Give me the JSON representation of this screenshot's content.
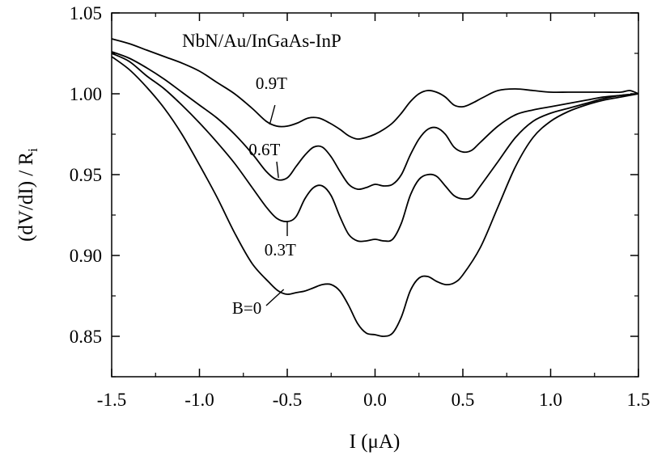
{
  "chart_data": {
    "type": "line",
    "title": "NbN/Au/InGaAs-InP",
    "xlabel": "I (μA)",
    "ylabel": "(dV/dI) / R",
    "ylabel_subscript": "i",
    "xlim": [
      -1.5,
      1.5
    ],
    "ylim": [
      0.825,
      1.05
    ],
    "xticks": [
      {
        "v": -1.5,
        "label": "-1.5"
      },
      {
        "v": -1.0,
        "label": "-1.0"
      },
      {
        "v": -0.5,
        "label": "-0.5"
      },
      {
        "v": 0.0,
        "label": "0.0"
      },
      {
        "v": 0.5,
        "label": "0.5"
      },
      {
        "v": 1.0,
        "label": "1.0"
      },
      {
        "v": 1.5,
        "label": "1.5"
      }
    ],
    "yticks": [
      {
        "v": 0.85,
        "label": "0.85"
      },
      {
        "v": 0.9,
        "label": "0.90"
      },
      {
        "v": 0.95,
        "label": "0.95"
      },
      {
        "v": 1.0,
        "label": "1.00"
      },
      {
        "v": 1.05,
        "label": "1.05"
      }
    ],
    "grid": false,
    "series": [
      {
        "name": "0.9T",
        "label_at": [
          -0.59,
          1.003
        ],
        "leader": [
          [
            -0.57,
            0.993
          ],
          [
            -0.6,
            0.981
          ]
        ],
        "points": [
          [
            -1.5,
            1.034
          ],
          [
            -1.4,
            1.031
          ],
          [
            -1.3,
            1.027
          ],
          [
            -1.2,
            1.023
          ],
          [
            -1.1,
            1.019
          ],
          [
            -1.0,
            1.014
          ],
          [
            -0.9,
            1.007
          ],
          [
            -0.8,
            1.0
          ],
          [
            -0.7,
            0.991
          ],
          [
            -0.62,
            0.983
          ],
          [
            -0.56,
            0.98
          ],
          [
            -0.5,
            0.98
          ],
          [
            -0.44,
            0.982
          ],
          [
            -0.38,
            0.985
          ],
          [
            -0.32,
            0.985
          ],
          [
            -0.26,
            0.982
          ],
          [
            -0.2,
            0.978
          ],
          [
            -0.15,
            0.974
          ],
          [
            -0.1,
            0.972
          ],
          [
            -0.05,
            0.973
          ],
          [
            0.0,
            0.975
          ],
          [
            0.05,
            0.978
          ],
          [
            0.1,
            0.982
          ],
          [
            0.15,
            0.988
          ],
          [
            0.2,
            0.995
          ],
          [
            0.25,
            1.0
          ],
          [
            0.3,
            1.002
          ],
          [
            0.35,
            1.001
          ],
          [
            0.4,
            0.998
          ],
          [
            0.45,
            0.993
          ],
          [
            0.5,
            0.992
          ],
          [
            0.55,
            0.994
          ],
          [
            0.62,
            0.998
          ],
          [
            0.7,
            1.002
          ],
          [
            0.8,
            1.003
          ],
          [
            0.9,
            1.002
          ],
          [
            1.0,
            1.001
          ],
          [
            1.1,
            1.001
          ],
          [
            1.2,
            1.001
          ],
          [
            1.3,
            1.001
          ],
          [
            1.4,
            1.001
          ],
          [
            1.45,
            1.002
          ],
          [
            1.5,
            1.0
          ]
        ]
      },
      {
        "name": "0.6T",
        "label_at": [
          -0.63,
          0.962
        ],
        "leader": [
          [
            -0.56,
            0.958
          ],
          [
            -0.55,
            0.948
          ]
        ],
        "points": [
          [
            -1.5,
            1.026
          ],
          [
            -1.4,
            1.022
          ],
          [
            -1.3,
            1.016
          ],
          [
            -1.2,
            1.009
          ],
          [
            -1.1,
            1.001
          ],
          [
            -1.0,
            0.993
          ],
          [
            -0.9,
            0.985
          ],
          [
            -0.8,
            0.975
          ],
          [
            -0.7,
            0.963
          ],
          [
            -0.62,
            0.952
          ],
          [
            -0.56,
            0.947
          ],
          [
            -0.5,
            0.948
          ],
          [
            -0.45,
            0.955
          ],
          [
            -0.4,
            0.962
          ],
          [
            -0.35,
            0.967
          ],
          [
            -0.3,
            0.967
          ],
          [
            -0.25,
            0.961
          ],
          [
            -0.2,
            0.952
          ],
          [
            -0.15,
            0.944
          ],
          [
            -0.1,
            0.941
          ],
          [
            -0.05,
            0.942
          ],
          [
            0.0,
            0.944
          ],
          [
            0.05,
            0.943
          ],
          [
            0.1,
            0.944
          ],
          [
            0.15,
            0.95
          ],
          [
            0.2,
            0.962
          ],
          [
            0.25,
            0.972
          ],
          [
            0.3,
            0.978
          ],
          [
            0.35,
            0.979
          ],
          [
            0.4,
            0.975
          ],
          [
            0.45,
            0.967
          ],
          [
            0.5,
            0.964
          ],
          [
            0.55,
            0.965
          ],
          [
            0.6,
            0.97
          ],
          [
            0.7,
            0.98
          ],
          [
            0.8,
            0.987
          ],
          [
            0.9,
            0.99
          ],
          [
            1.0,
            0.992
          ],
          [
            1.1,
            0.994
          ],
          [
            1.2,
            0.996
          ],
          [
            1.3,
            0.998
          ],
          [
            1.4,
            0.999
          ],
          [
            1.5,
            1.0
          ]
        ]
      },
      {
        "name": "0.3T",
        "label_at": [
          -0.54,
          0.9
        ],
        "leader": [
          [
            -0.5,
            0.912
          ],
          [
            -0.5,
            0.921
          ]
        ],
        "points": [
          [
            -1.5,
            1.025
          ],
          [
            -1.4,
            1.02
          ],
          [
            -1.3,
            1.011
          ],
          [
            -1.2,
            1.003
          ],
          [
            -1.1,
            0.993
          ],
          [
            -1.0,
            0.982
          ],
          [
            -0.9,
            0.97
          ],
          [
            -0.8,
            0.957
          ],
          [
            -0.7,
            0.942
          ],
          [
            -0.62,
            0.93
          ],
          [
            -0.56,
            0.923
          ],
          [
            -0.5,
            0.921
          ],
          [
            -0.45,
            0.924
          ],
          [
            -0.4,
            0.935
          ],
          [
            -0.35,
            0.942
          ],
          [
            -0.3,
            0.943
          ],
          [
            -0.25,
            0.937
          ],
          [
            -0.2,
            0.924
          ],
          [
            -0.15,
            0.913
          ],
          [
            -0.1,
            0.909
          ],
          [
            -0.05,
            0.909
          ],
          [
            0.0,
            0.91
          ],
          [
            0.05,
            0.909
          ],
          [
            0.1,
            0.91
          ],
          [
            0.15,
            0.92
          ],
          [
            0.2,
            0.937
          ],
          [
            0.25,
            0.947
          ],
          [
            0.3,
            0.95
          ],
          [
            0.35,
            0.949
          ],
          [
            0.4,
            0.943
          ],
          [
            0.45,
            0.937
          ],
          [
            0.5,
            0.935
          ],
          [
            0.55,
            0.936
          ],
          [
            0.6,
            0.943
          ],
          [
            0.7,
            0.958
          ],
          [
            0.8,
            0.973
          ],
          [
            0.9,
            0.983
          ],
          [
            1.0,
            0.988
          ],
          [
            1.1,
            0.991
          ],
          [
            1.2,
            0.994
          ],
          [
            1.3,
            0.997
          ],
          [
            1.4,
            0.999
          ],
          [
            1.5,
            1.0
          ]
        ]
      },
      {
        "name": "B=0",
        "label_at": [
          -0.73,
          0.864
        ],
        "leader": [
          [
            -0.62,
            0.869
          ],
          [
            -0.52,
            0.879
          ]
        ],
        "points": [
          [
            -1.5,
            1.023
          ],
          [
            -1.4,
            1.015
          ],
          [
            -1.3,
            1.004
          ],
          [
            -1.2,
            0.991
          ],
          [
            -1.1,
            0.975
          ],
          [
            -1.0,
            0.956
          ],
          [
            -0.9,
            0.936
          ],
          [
            -0.8,
            0.914
          ],
          [
            -0.7,
            0.895
          ],
          [
            -0.6,
            0.883
          ],
          [
            -0.55,
            0.878
          ],
          [
            -0.5,
            0.876
          ],
          [
            -0.45,
            0.877
          ],
          [
            -0.4,
            0.878
          ],
          [
            -0.35,
            0.88
          ],
          [
            -0.3,
            0.882
          ],
          [
            -0.25,
            0.882
          ],
          [
            -0.2,
            0.878
          ],
          [
            -0.15,
            0.869
          ],
          [
            -0.1,
            0.858
          ],
          [
            -0.05,
            0.852
          ],
          [
            0.0,
            0.851
          ],
          [
            0.05,
            0.85
          ],
          [
            0.1,
            0.852
          ],
          [
            0.15,
            0.862
          ],
          [
            0.2,
            0.878
          ],
          [
            0.25,
            0.886
          ],
          [
            0.3,
            0.887
          ],
          [
            0.35,
            0.884
          ],
          [
            0.4,
            0.882
          ],
          [
            0.45,
            0.883
          ],
          [
            0.5,
            0.888
          ],
          [
            0.6,
            0.905
          ],
          [
            0.7,
            0.93
          ],
          [
            0.8,
            0.955
          ],
          [
            0.9,
            0.973
          ],
          [
            1.0,
            0.983
          ],
          [
            1.1,
            0.989
          ],
          [
            1.2,
            0.993
          ],
          [
            1.3,
            0.996
          ],
          [
            1.4,
            0.998
          ],
          [
            1.5,
            1.0
          ]
        ]
      }
    ]
  }
}
